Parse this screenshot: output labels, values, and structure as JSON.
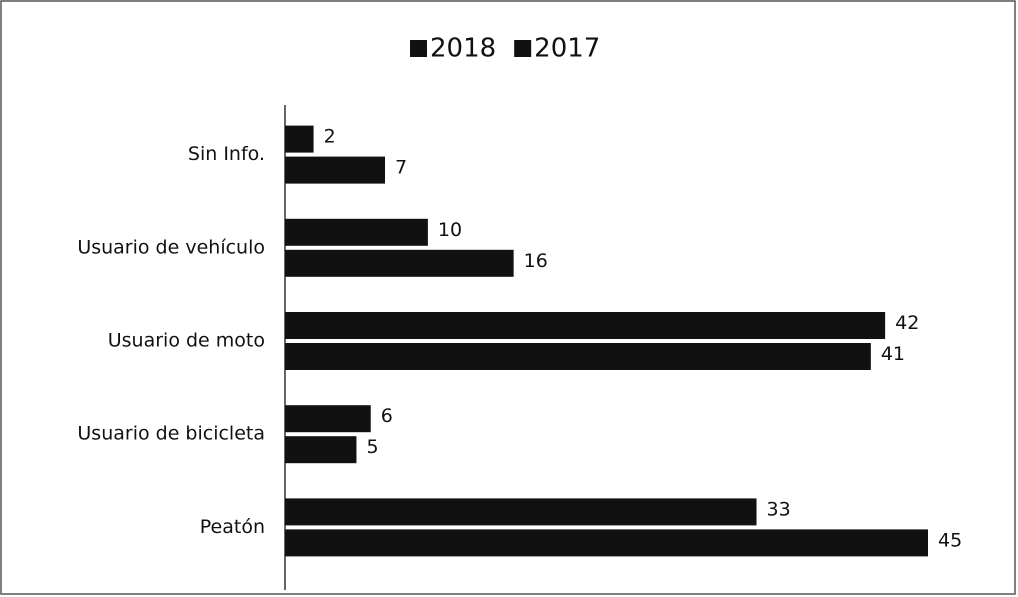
{
  "chart_data": {
    "type": "bar",
    "orientation": "horizontal",
    "categories": [
      "Sin Info.",
      "Usuario de vehículo",
      "Usuario de moto",
      "Usuario de bicicleta",
      "Peatón"
    ],
    "series": [
      {
        "name": "2018",
        "color": "#111111",
        "values": [
          2,
          10,
          42,
          6,
          33
        ]
      },
      {
        "name": "2017",
        "color": "#111111",
        "values": [
          7,
          16,
          41,
          5,
          45
        ]
      }
    ],
    "xlim": [
      0,
      45
    ],
    "legend": "top"
  }
}
